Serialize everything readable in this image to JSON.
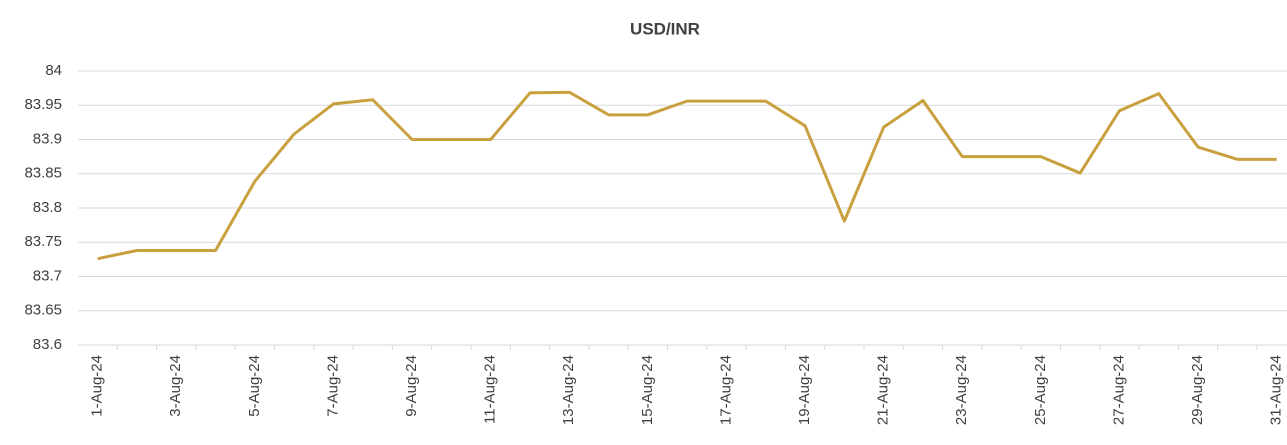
{
  "chart_data": {
    "type": "line",
    "title": "USD/INR",
    "categories": [
      "1-Aug-24",
      null,
      "3-Aug-24",
      null,
      "5-Aug-24",
      null,
      "7-Aug-24",
      null,
      "9-Aug-24",
      null,
      "11-Aug-24",
      null,
      "13-Aug-24",
      null,
      "15-Aug-24",
      null,
      "17-Aug-24",
      null,
      "19-Aug-24",
      null,
      "21-Aug-24",
      null,
      "23-Aug-24",
      null,
      "25-Aug-24",
      null,
      "27-Aug-24",
      null,
      "29-Aug-24",
      null,
      "31-Aug-24"
    ],
    "series": [
      {
        "name": "USD/INR",
        "color": "#c9a03f",
        "values": [
          83.726,
          83.738,
          83.738,
          83.738,
          83.839,
          83.908,
          83.952,
          83.958,
          83.9,
          83.9,
          83.9,
          83.968,
          83.969,
          83.936,
          83.936,
          83.956,
          83.956,
          83.956,
          83.92,
          83.781,
          83.918,
          83.957,
          83.875,
          83.875,
          83.875,
          83.851,
          83.942,
          83.967,
          83.889,
          83.871,
          83.871
        ]
      }
    ],
    "ylim": [
      83.6,
      84
    ],
    "yticks": [
      83.6,
      83.65,
      83.7,
      83.75,
      83.8,
      83.85,
      83.9,
      83.95,
      84
    ],
    "grid": true
  }
}
